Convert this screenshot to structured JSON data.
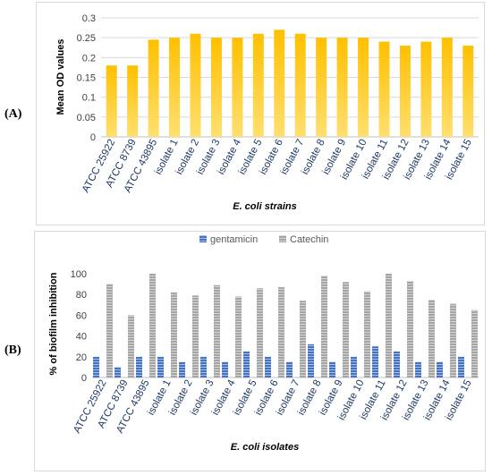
{
  "labels": {
    "panel_a": "(A)",
    "panel_b": "(B)"
  },
  "colors": {
    "bar_top": "#ffc000",
    "bar_bottom": "#ffdf6f",
    "gentamicin": "#4472c4",
    "catechin": "#a5a5a5"
  },
  "chart_data": [
    {
      "type": "bar",
      "categories": [
        "ATCC 25922",
        "ATCC 8739",
        "ATCC 43895",
        "isolate 1",
        "isolate 2",
        "isolate 3",
        "isolate 4",
        "isolate 5",
        "isolate 6",
        "isolate 7",
        "isolate 8",
        "isolate 9",
        "isolate 10",
        "isolate 11",
        "isolate 12",
        "isolate 13",
        "isolate 14",
        "isolate 15"
      ],
      "values": [
        0.18,
        0.18,
        0.245,
        0.25,
        0.26,
        0.25,
        0.25,
        0.26,
        0.27,
        0.26,
        0.25,
        0.25,
        0.25,
        0.24,
        0.23,
        0.24,
        0.25,
        0.23
      ],
      "title": "",
      "xlabel": "E. coli strains",
      "ylabel": "Mean OD values",
      "ylim": [
        0,
        0.3
      ],
      "yticks": [
        "0",
        "0.05",
        "0.1",
        "0.15",
        "0.2",
        "0.25",
        "0.3"
      ],
      "ytick_values": [
        0,
        0.05,
        0.1,
        0.15,
        0.2,
        0.25,
        0.3
      ],
      "grid": true,
      "legend": "none"
    },
    {
      "type": "bar",
      "categories": [
        "ATCC 25922",
        "ATCC 8739",
        "ATCC 43895",
        "isolate 1",
        "isolate 2",
        "isolate 3",
        "isolate 4",
        "isolate 5",
        "isolate 6",
        "isolate 7",
        "isolate 8",
        "isolate 9",
        "isolate 10",
        "isolate 11",
        "isolate 12",
        "isolate 13",
        "isolate 14",
        "isolate 15"
      ],
      "series": [
        {
          "name": "gentamicin",
          "values": [
            20,
            10,
            20,
            20,
            15,
            20,
            15,
            25,
            20,
            15,
            32,
            15,
            20,
            30,
            25,
            15,
            15,
            20
          ]
        },
        {
          "name": "Catechin",
          "values": [
            90,
            60,
            100,
            82,
            79,
            89,
            78,
            86,
            87,
            74,
            98,
            92,
            83,
            100,
            93,
            75,
            71,
            65
          ]
        }
      ],
      "title": "",
      "xlabel": "E. coli isolates",
      "ylabel": "% of biofilm inhibition",
      "ylim": [
        0,
        100
      ],
      "yticks": [
        "0",
        "20",
        "40",
        "60",
        "80",
        "100"
      ],
      "ytick_values": [
        0,
        20,
        40,
        60,
        80,
        100
      ],
      "grid": false,
      "legend": "top-center"
    }
  ]
}
